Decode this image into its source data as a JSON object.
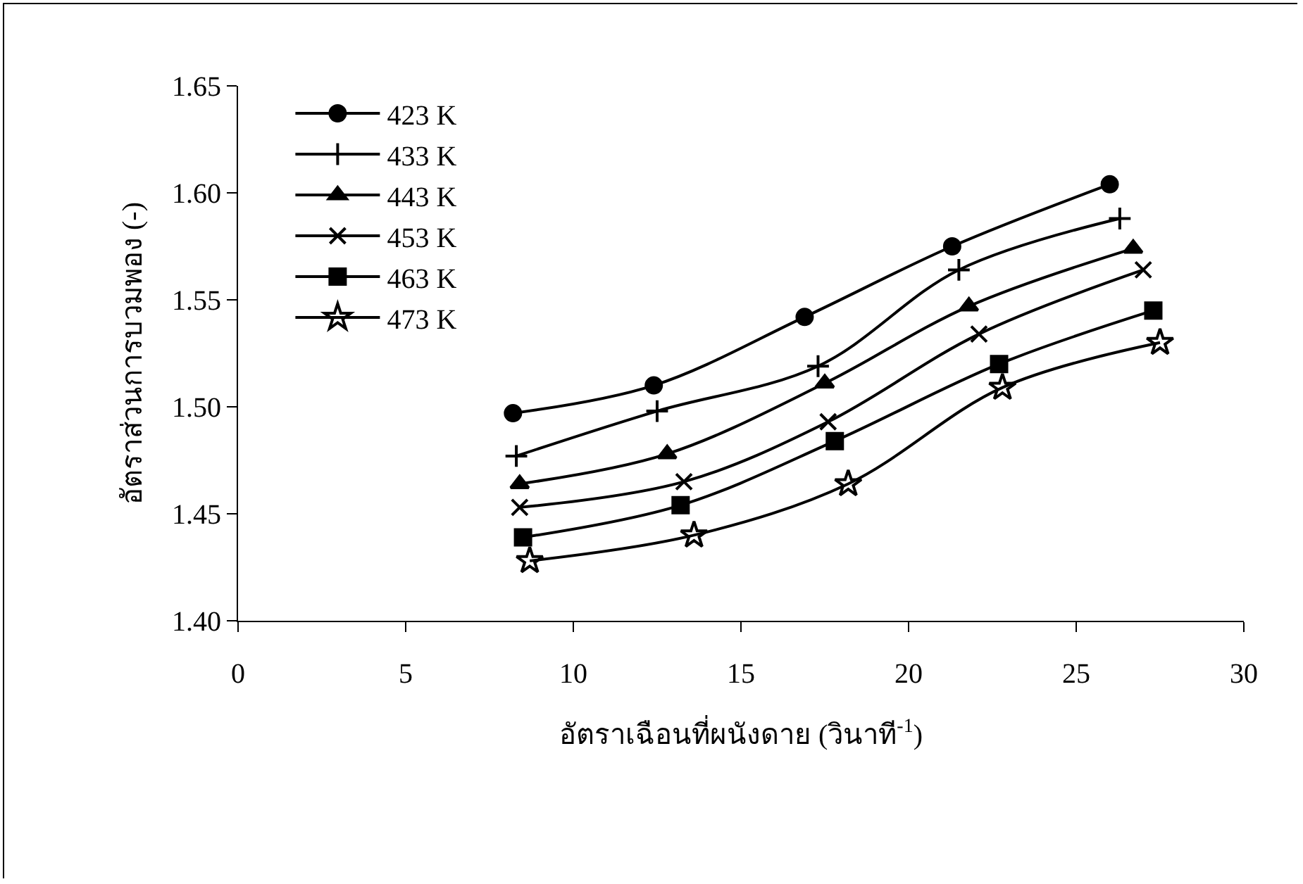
{
  "chart_data": {
    "type": "line",
    "xlabel": "อัตราเฉือนที่ผนังดาย (วินาที$^{-1}$)",
    "ylabel": "อัตราส่วนการบวมพอง (-)",
    "xlim": [
      0,
      30
    ],
    "xticks": [
      0,
      5,
      10,
      15,
      20,
      25,
      30
    ],
    "ylim": [
      1.4,
      1.65
    ],
    "yticks": [
      {
        "value": 1.4,
        "label": "1.40"
      },
      {
        "value": 1.45,
        "label": "1.45"
      },
      {
        "value": 1.5,
        "label": "1.50"
      },
      {
        "value": 1.55,
        "label": "1.55"
      },
      {
        "value": 1.6,
        "label": "1.60"
      },
      {
        "value": 1.65,
        "label": "1.65"
      }
    ],
    "grid": false,
    "legend": "top left",
    "line_style": "solid",
    "series": [
      {
        "name": "423 K",
        "color": "#000000",
        "marker": "circle",
        "x": [
          8.2,
          12.4,
          16.9,
          21.3,
          26.0
        ],
        "values": [
          1.497,
          1.51,
          1.542,
          1.575,
          1.604
        ]
      },
      {
        "name": "433 K",
        "color": "#000000",
        "marker": "cross",
        "x": [
          8.3,
          12.5,
          17.3,
          21.5,
          26.3
        ],
        "values": [
          1.477,
          1.498,
          1.519,
          1.564,
          1.588
        ]
      },
      {
        "name": "443 K",
        "color": "#000000",
        "marker": "triangle",
        "x": [
          8.4,
          12.8,
          17.5,
          21.8,
          26.7
        ],
        "values": [
          1.464,
          1.478,
          1.511,
          1.547,
          1.574
        ]
      },
      {
        "name": "453 K",
        "color": "#000000",
        "marker": "x",
        "x": [
          8.4,
          13.3,
          17.6,
          22.1,
          27.0
        ],
        "values": [
          1.453,
          1.465,
          1.493,
          1.534,
          1.564
        ]
      },
      {
        "name": "463 K",
        "color": "#000000",
        "marker": "square",
        "x": [
          8.5,
          13.2,
          17.8,
          22.7,
          27.3
        ],
        "values": [
          1.439,
          1.454,
          1.484,
          1.52,
          1.545
        ]
      },
      {
        "name": "473 K",
        "color": "#000000",
        "marker": "star",
        "x": [
          8.7,
          13.6,
          18.2,
          22.8,
          27.5
        ],
        "values": [
          1.428,
          1.44,
          1.464,
          1.509,
          1.53
        ]
      }
    ]
  }
}
